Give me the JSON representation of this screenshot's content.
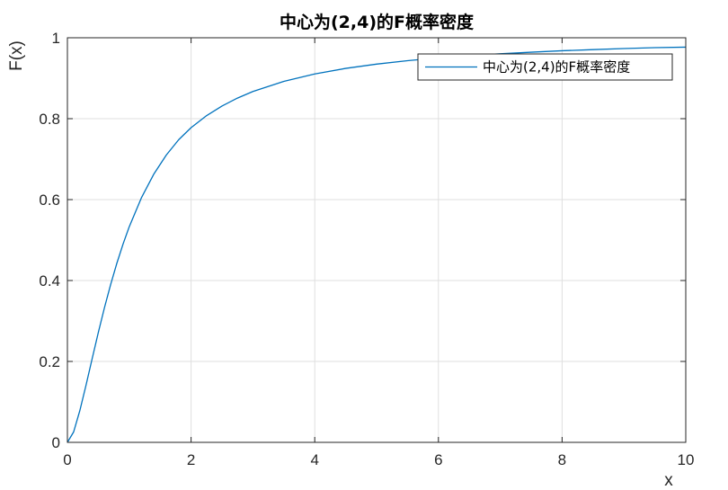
{
  "chart_data": {
    "type": "line",
    "title": "中心为(2,4)的F概率密度",
    "xlabel": "x",
    "ylabel": "F(x)",
    "xlim": [
      0,
      10
    ],
    "ylim": [
      0,
      1
    ],
    "xticks": [
      0,
      2,
      4,
      6,
      8,
      10
    ],
    "xtick_labels": [
      "0",
      "2",
      "4",
      "6",
      "8",
      "10"
    ],
    "yticks": [
      0,
      0.2,
      0.4,
      0.6,
      0.8,
      1
    ],
    "ytick_labels": [
      "0",
      "0.2",
      "0.4",
      "0.6",
      "0.8",
      "1"
    ],
    "grid": true,
    "legend_position": "top-right",
    "series": [
      {
        "name": "中心为(2,4)的F概率密度",
        "color": "#0072bd",
        "x": [
          0,
          0.1,
          0.2,
          0.3,
          0.4,
          0.5,
          0.6,
          0.7,
          0.8,
          0.9,
          1.0,
          1.2,
          1.4,
          1.6,
          1.8,
          2.0,
          2.25,
          2.5,
          2.75,
          3.0,
          3.5,
          4.0,
          4.5,
          5.0,
          5.5,
          6.0,
          6.5,
          7.0,
          7.5,
          8.0,
          8.5,
          9.0,
          9.5,
          10.0
        ],
        "y": [
          0,
          0.0255,
          0.0778,
          0.1406,
          0.2066,
          0.2716,
          0.3333,
          0.3905,
          0.4428,
          0.4902,
          0.5329,
          0.6055,
          0.6637,
          0.7103,
          0.7481,
          0.7778,
          0.8074,
          0.8313,
          0.8509,
          0.8672,
          0.8922,
          0.9105,
          0.9243,
          0.9349,
          0.9433,
          0.9502,
          0.9558,
          0.9604,
          0.9643,
          0.9679,
          0.9707,
          0.9733,
          0.9756,
          0.9768
        ]
      }
    ]
  }
}
